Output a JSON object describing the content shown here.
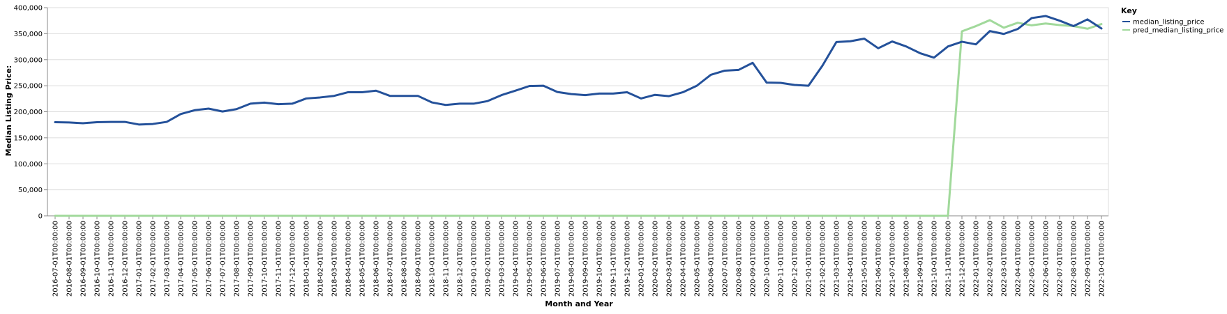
{
  "chart_data": {
    "type": "line",
    "xlabel": "Month and Year",
    "ylabel": "Median Listing Price:",
    "ylim": [
      0,
      400000
    ],
    "yticks": [
      "0",
      "50,000",
      "100,000",
      "150,000",
      "200,000",
      "250,000",
      "300,000",
      "350,000",
      "400,000"
    ],
    "ytick_values": [
      0,
      50000,
      100000,
      150000,
      200000,
      250000,
      300000,
      350000,
      400000
    ],
    "grid": true,
    "legend": {
      "title": "Key",
      "position": "top-right"
    },
    "colors": {
      "median_listing_price": "#24519a",
      "pred_median_listing_price": "#a1d99b"
    },
    "x": [
      "2016-07-01T00:00:00",
      "2016-08-01T00:00:00",
      "2016-09-01T00:00:00",
      "2016-10-01T00:00:00",
      "2016-11-01T00:00:00",
      "2016-12-01T00:00:00",
      "2017-01-01T00:00:00",
      "2017-02-01T00:00:00",
      "2017-03-01T00:00:00",
      "2017-04-01T00:00:00",
      "2017-05-01T00:00:00",
      "2017-06-01T00:00:00",
      "2017-07-01T00:00:00",
      "2017-08-01T00:00:00",
      "2017-09-01T00:00:00",
      "2017-10-01T00:00:00",
      "2017-11-01T00:00:00",
      "2017-12-01T00:00:00",
      "2018-01-01T00:00:00",
      "2018-02-01T00:00:00",
      "2018-03-01T00:00:00",
      "2018-04-01T00:00:00",
      "2018-05-01T00:00:00",
      "2018-06-01T00:00:00",
      "2018-07-01T00:00:00",
      "2018-08-01T00:00:00",
      "2018-09-01T00:00:00",
      "2018-10-01T00:00:00",
      "2018-11-01T00:00:00",
      "2018-12-01T00:00:00",
      "2019-01-01T00:00:00",
      "2019-02-01T00:00:00",
      "2019-03-01T00:00:00",
      "2019-04-01T00:00:00",
      "2019-05-01T00:00:00",
      "2019-06-01T00:00:00",
      "2019-07-01T00:00:00",
      "2019-08-01T00:00:00",
      "2019-09-01T00:00:00",
      "2019-10-01T00:00:00",
      "2019-11-01T00:00:00",
      "2019-12-01T00:00:00",
      "2020-01-01T00:00:00",
      "2020-02-01T00:00:00",
      "2020-03-01T00:00:00",
      "2020-04-01T00:00:00",
      "2020-05-01T00:00:00",
      "2020-06-01T00:00:00",
      "2020-07-01T00:00:00",
      "2020-08-01T00:00:00",
      "2020-09-01T00:00:00",
      "2020-10-01T00:00:00",
      "2020-11-01T00:00:00",
      "2020-12-01T00:00:00",
      "2021-01-01T00:00:00",
      "2021-02-01T00:00:00",
      "2021-03-01T00:00:00",
      "2021-04-01T00:00:00",
      "2021-05-01T00:00:00",
      "2021-06-01T00:00:00",
      "2021-07-01T00:00:00",
      "2021-08-01T00:00:00",
      "2021-09-01T00:00:00",
      "2021-10-01T00:00:00",
      "2021-11-01T00:00:00",
      "2021-12-01T00:00:00",
      "2022-01-01T00:00:00",
      "2022-02-01T00:00:00",
      "2022-03-01T00:00:00",
      "2022-04-01T00:00:00",
      "2022-05-01T00:00:00",
      "2022-06-01T00:00:00",
      "2022-07-01T00:00:00",
      "2022-08-01T00:00:00",
      "2022-09-01T00:00:00",
      "2022-10-01T00:00:00"
    ],
    "series": [
      {
        "name": "median_listing_price",
        "values": [
          180000,
          179500,
          178000,
          180000,
          180500,
          180500,
          175500,
          176500,
          180500,
          195500,
          203000,
          206000,
          200500,
          205000,
          215500,
          217500,
          214500,
          215500,
          225500,
          227500,
          230500,
          237500,
          237500,
          240500,
          230500,
          230500,
          230500,
          218000,
          213000,
          215500,
          215500,
          220500,
          232000,
          240500,
          249500,
          250000,
          238000,
          234000,
          232000,
          235000,
          235000,
          237500,
          225500,
          232500,
          230000,
          237500,
          250000,
          271000,
          279000,
          280500,
          294000,
          256000,
          255500,
          251500,
          250000,
          288500,
          334000,
          335500,
          340500,
          322000,
          335000,
          325500,
          312500,
          304000,
          325500,
          334500,
          329500,
          355000,
          349500,
          359000,
          380000,
          384000,
          375000,
          364500,
          377500,
          360000
        ]
      },
      {
        "name": "pred_median_listing_price",
        "values": [
          0,
          0,
          0,
          0,
          0,
          0,
          0,
          0,
          0,
          0,
          0,
          0,
          0,
          0,
          0,
          0,
          0,
          0,
          0,
          0,
          0,
          0,
          0,
          0,
          0,
          0,
          0,
          0,
          0,
          0,
          0,
          0,
          0,
          0,
          0,
          0,
          0,
          0,
          0,
          0,
          0,
          0,
          0,
          0,
          0,
          0,
          0,
          0,
          0,
          0,
          0,
          0,
          0,
          0,
          0,
          0,
          0,
          0,
          0,
          0,
          0,
          0,
          0,
          0,
          0,
          354500,
          364500,
          376000,
          361500,
          371000,
          366000,
          369500,
          366500,
          364500,
          359500,
          368500
        ]
      }
    ]
  }
}
